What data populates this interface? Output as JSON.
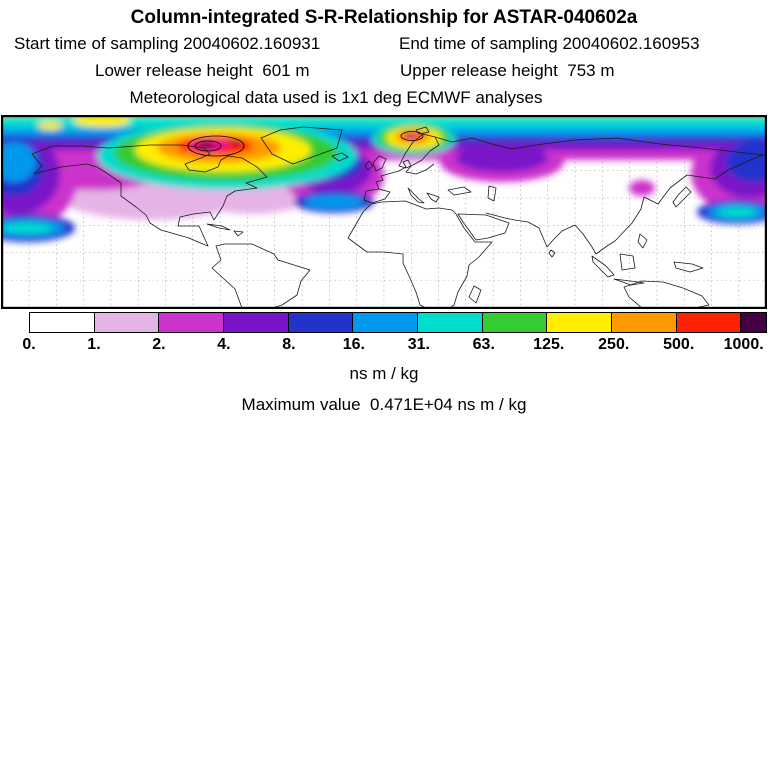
{
  "header": {
    "title": "Column-integrated S-R-Relationship for ASTAR-040602a",
    "start_time": "Start time of sampling 20040602.160931",
    "end_time": "End time of sampling 20040602.160953",
    "lower_release": "Lower release height  601 m",
    "upper_release": "Upper release height  753 m",
    "met_data": "Meteorological data used is 1x1 deg ECMWF analyses"
  },
  "chart_data": {
    "type": "heatmap",
    "subtype": "filled-contour global lat-lon map of source-receptor sensitivity",
    "title": "Column-integrated S-R-Relationship for ASTAR-040602a",
    "units": "ns m / kg",
    "maximum_value": "0.471E+04",
    "maximum_value_line": "Maximum value  0.471E+04 ns m / kg",
    "grid": "dashed latitude/longitude graticule",
    "colorbar": {
      "orientation": "horizontal",
      "tick_labels": [
        "0.",
        "1.",
        "2.",
        "4.",
        "8.",
        "16.",
        "31.",
        "63.",
        "125.",
        "250.",
        "500.",
        "1000."
      ],
      "levels": [
        0,
        1,
        2,
        4,
        8,
        16,
        31,
        63,
        125,
        250,
        500,
        1000
      ],
      "colors": [
        "#ffffff",
        "#e6b3e6",
        "#cc33cc",
        "#7a14c8",
        "#2233cc",
        "#0099ee",
        "#00ddcc",
        "#33cc33",
        "#ffee00",
        "#ff9900",
        "#ff2200",
        "#440044"
      ],
      "overflow_color": "#440044"
    },
    "map_content": {
      "high_value_regions": [
        "continuous high-sensitivity band along high northern latitudes",
        "primary maximum (yellow-orange-red, dark core) over northern Canada / Baffin Bay / Greenland",
        "secondary maximum (red, dark core) near Svalbard / Barents Sea",
        "magenta-purple lobes extending south over the North Pacific, North Atlantic and eastern Siberia",
        "southern hemisphere and tropics near zero (white)"
      ]
    }
  }
}
